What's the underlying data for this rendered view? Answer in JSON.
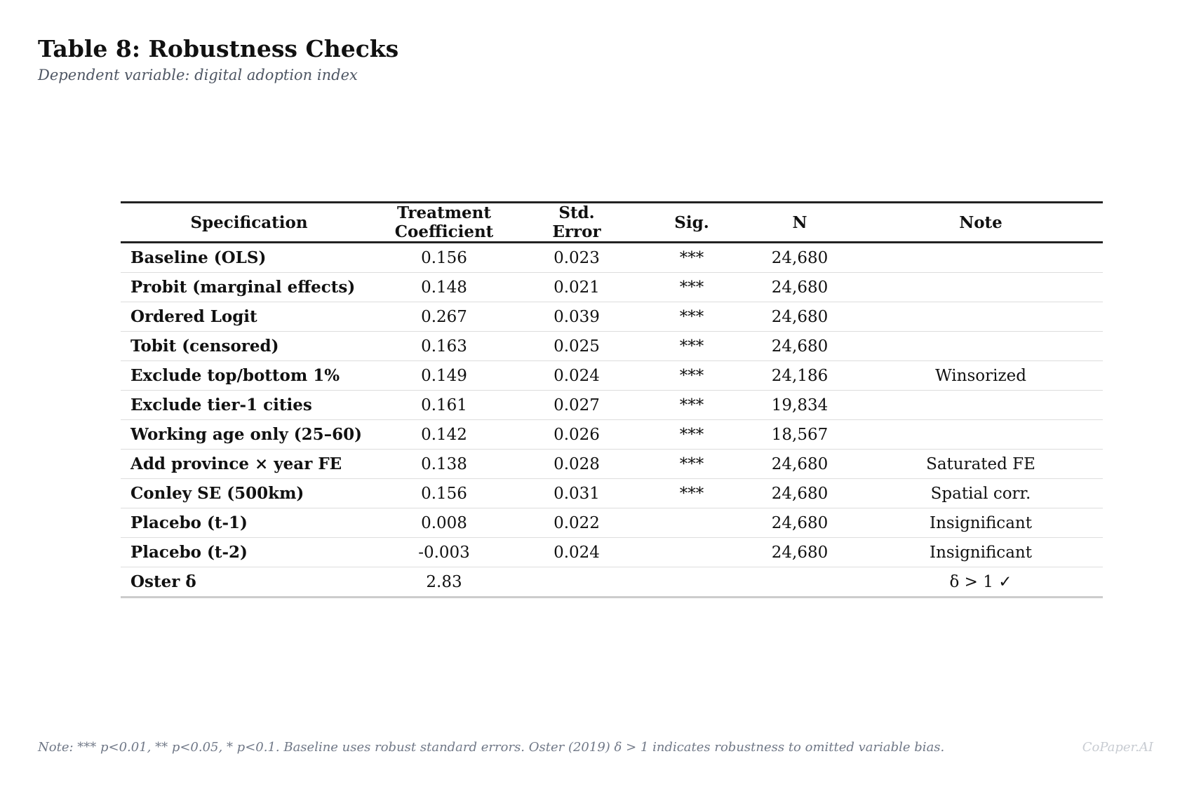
{
  "title": "Table 8: Robustness Checks",
  "subtitle": "Dependent variable: digital adoption index",
  "table": {
    "headers": {
      "specification": "Specification",
      "coef_line1": "Treatment",
      "coef_line2": "Coefficient",
      "se_line1": "Std.",
      "se_line2": "Error",
      "sig": "Sig.",
      "n": "N",
      "note": "Note"
    },
    "rows": [
      {
        "spec": "Baseline (OLS)",
        "coef": "0.156",
        "se": "0.023",
        "sig": "***",
        "n": "24,680",
        "note": ""
      },
      {
        "spec": "Probit (marginal effects)",
        "coef": "0.148",
        "se": "0.021",
        "sig": "***",
        "n": "24,680",
        "note": ""
      },
      {
        "spec": "Ordered Logit",
        "coef": "0.267",
        "se": "0.039",
        "sig": "***",
        "n": "24,680",
        "note": ""
      },
      {
        "spec": "Tobit (censored)",
        "coef": "0.163",
        "se": "0.025",
        "sig": "***",
        "n": "24,680",
        "note": ""
      },
      {
        "spec": "Exclude top/bottom 1%",
        "coef": "0.149",
        "se": "0.024",
        "sig": "***",
        "n": "24,186",
        "note": "Winsorized"
      },
      {
        "spec": "Exclude tier-1 cities",
        "coef": "0.161",
        "se": "0.027",
        "sig": "***",
        "n": "19,834",
        "note": ""
      },
      {
        "spec": "Working age only (25–60)",
        "coef": "0.142",
        "se": "0.026",
        "sig": "***",
        "n": "18,567",
        "note": ""
      },
      {
        "spec": "Add province × year FE",
        "coef": "0.138",
        "se": "0.028",
        "sig": "***",
        "n": "24,680",
        "note": "Saturated FE"
      },
      {
        "spec": "Conley SE (500km)",
        "coef": "0.156",
        "se": "0.031",
        "sig": "***",
        "n": "24,680",
        "note": "Spatial corr."
      },
      {
        "spec": "Placebo (t-1)",
        "coef": "0.008",
        "se": "0.022",
        "sig": "",
        "n": "24,680",
        "note": "Insignificant"
      },
      {
        "spec": "Placebo (t-2)",
        "coef": "-0.003",
        "se": "0.024",
        "sig": "",
        "n": "24,680",
        "note": "Insignificant"
      },
      {
        "spec": "Oster δ",
        "coef": "2.83",
        "se": "",
        "sig": "",
        "n": "",
        "note": "δ > 1 ✓"
      }
    ]
  },
  "footnote": "Note: *** p<0.01, ** p<0.05, * p<0.1. Baseline uses robust standard errors. Oster (2019) δ > 1 indicates robustness to omitted variable bias.",
  "watermark": "CoPaper.AI"
}
